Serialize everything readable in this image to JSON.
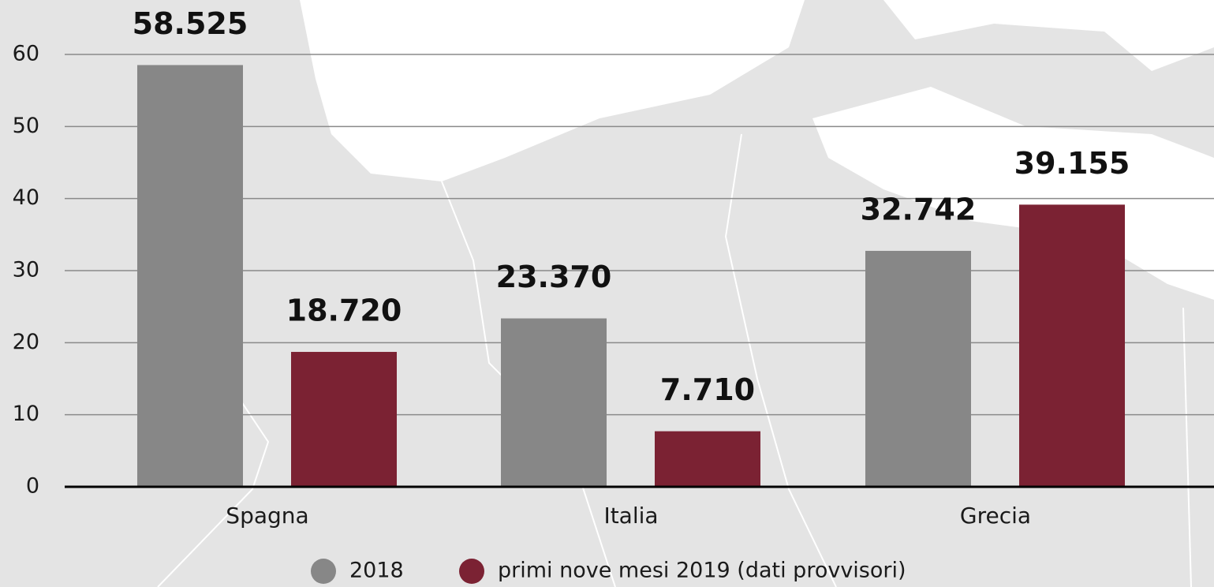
{
  "chart_data": {
    "type": "bar",
    "categories": [
      "Spagna",
      "Italia",
      "Grecia"
    ],
    "series": [
      {
        "name": "2018",
        "color": "#878787",
        "values": [
          58.525,
          23.37,
          32.742
        ],
        "value_labels": [
          "58.525",
          "23.370",
          "32.742"
        ]
      },
      {
        "name": "primi nove mesi 2019 (dati provvisori)",
        "color": "#7b2233",
        "values": [
          18.72,
          7.71,
          39.155
        ],
        "value_labels": [
          "18.720",
          "7.710",
          "39.155"
        ]
      }
    ],
    "ylim": [
      0,
      60
    ],
    "yticks": [
      0,
      10,
      20,
      30,
      40,
      50,
      60
    ],
    "grid": true
  }
}
